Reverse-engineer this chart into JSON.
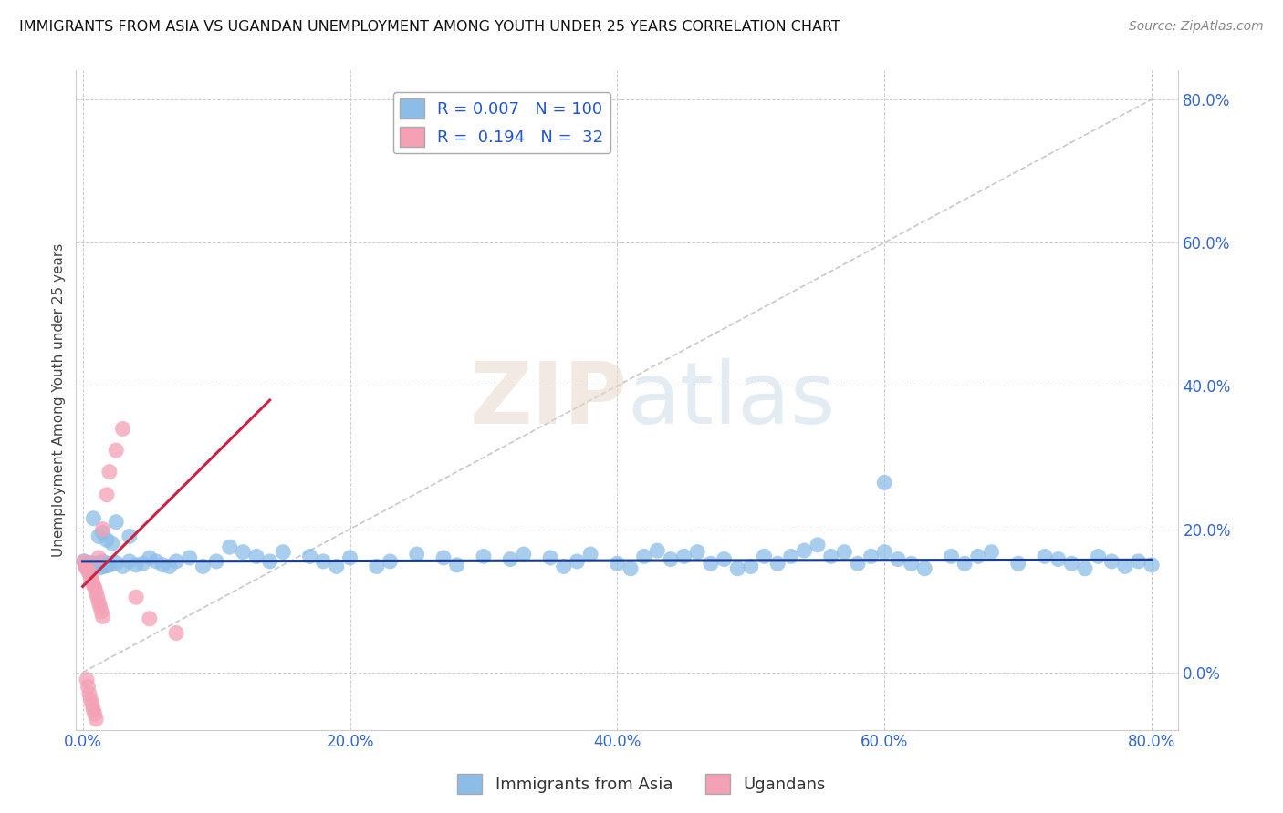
{
  "title": "IMMIGRANTS FROM ASIA VS UGANDAN UNEMPLOYMENT AMONG YOUTH UNDER 25 YEARS CORRELATION CHART",
  "source": "Source: ZipAtlas.com",
  "ylabel": "Unemployment Among Youth under 25 years",
  "x_tick_labels": [
    "0.0%",
    "20.0%",
    "40.0%",
    "60.0%",
    "80.0%"
  ],
  "y_tick_labels_right": [
    "0.0%",
    "20.0%",
    "40.0%",
    "60.0%",
    "80.0%"
  ],
  "xlim": [
    -0.005,
    0.82
  ],
  "ylim": [
    -0.08,
    0.84
  ],
  "series1_color": "#8bbde8",
  "series2_color": "#f4a0b5",
  "line1_color": "#1a3a8c",
  "line2_color": "#cc2244",
  "watermark": "ZIPatlas",
  "background_color": "#ffffff",
  "grid_color": "#cccccc",
  "blue_scatter_x": [
    0.001,
    0.002,
    0.003,
    0.004,
    0.005,
    0.006,
    0.007,
    0.008,
    0.009,
    0.01,
    0.011,
    0.012,
    0.013,
    0.014,
    0.015,
    0.016,
    0.017,
    0.018,
    0.019,
    0.02,
    0.025,
    0.03,
    0.035,
    0.04,
    0.045,
    0.05,
    0.055,
    0.06,
    0.065,
    0.07,
    0.08,
    0.09,
    0.1,
    0.11,
    0.12,
    0.13,
    0.14,
    0.15,
    0.17,
    0.18,
    0.19,
    0.2,
    0.22,
    0.23,
    0.25,
    0.27,
    0.28,
    0.3,
    0.32,
    0.33,
    0.35,
    0.36,
    0.37,
    0.38,
    0.4,
    0.41,
    0.42,
    0.43,
    0.44,
    0.45,
    0.46,
    0.47,
    0.48,
    0.49,
    0.5,
    0.51,
    0.52,
    0.53,
    0.54,
    0.55,
    0.56,
    0.57,
    0.58,
    0.59,
    0.6,
    0.61,
    0.62,
    0.63,
    0.65,
    0.66,
    0.67,
    0.68,
    0.7,
    0.72,
    0.73,
    0.74,
    0.75,
    0.76,
    0.77,
    0.78,
    0.79,
    0.8,
    0.015,
    0.025,
    0.035,
    0.008,
    0.012,
    0.018,
    0.022,
    0.6
  ],
  "blue_scatter_y": [
    0.155,
    0.148,
    0.152,
    0.145,
    0.15,
    0.153,
    0.147,
    0.149,
    0.151,
    0.148,
    0.152,
    0.15,
    0.146,
    0.153,
    0.155,
    0.148,
    0.151,
    0.149,
    0.152,
    0.15,
    0.153,
    0.148,
    0.155,
    0.15,
    0.152,
    0.16,
    0.155,
    0.15,
    0.148,
    0.155,
    0.16,
    0.148,
    0.155,
    0.175,
    0.168,
    0.162,
    0.155,
    0.168,
    0.162,
    0.155,
    0.148,
    0.16,
    0.148,
    0.155,
    0.165,
    0.16,
    0.15,
    0.162,
    0.158,
    0.165,
    0.16,
    0.148,
    0.155,
    0.165,
    0.152,
    0.145,
    0.162,
    0.17,
    0.158,
    0.162,
    0.168,
    0.152,
    0.158,
    0.145,
    0.148,
    0.162,
    0.152,
    0.162,
    0.17,
    0.178,
    0.162,
    0.168,
    0.152,
    0.162,
    0.168,
    0.158,
    0.152,
    0.145,
    0.162,
    0.152,
    0.162,
    0.168,
    0.152,
    0.162,
    0.158,
    0.152,
    0.145,
    0.162,
    0.155,
    0.148,
    0.155,
    0.15,
    0.195,
    0.21,
    0.19,
    0.215,
    0.19,
    0.185,
    0.18,
    0.265
  ],
  "pink_scatter_x": [
    0.001,
    0.002,
    0.003,
    0.004,
    0.005,
    0.006,
    0.007,
    0.008,
    0.009,
    0.01,
    0.011,
    0.012,
    0.013,
    0.014,
    0.015,
    0.003,
    0.004,
    0.005,
    0.006,
    0.007,
    0.008,
    0.009,
    0.01,
    0.012,
    0.015,
    0.018,
    0.02,
    0.025,
    0.03,
    0.04,
    0.05,
    0.07
  ],
  "pink_scatter_y": [
    0.155,
    0.148,
    0.145,
    0.142,
    0.138,
    0.132,
    0.128,
    0.122,
    0.118,
    0.112,
    0.105,
    0.098,
    0.092,
    0.085,
    0.078,
    -0.01,
    -0.02,
    -0.03,
    -0.038,
    -0.045,
    -0.052,
    -0.058,
    -0.065,
    0.16,
    0.2,
    0.248,
    0.28,
    0.31,
    0.34,
    0.105,
    0.075,
    0.055
  ],
  "blue_line_x": [
    0.0,
    0.8
  ],
  "blue_line_y": [
    0.155,
    0.157
  ],
  "pink_line_x": [
    0.0,
    0.14
  ],
  "pink_line_y": [
    0.12,
    0.38
  ]
}
